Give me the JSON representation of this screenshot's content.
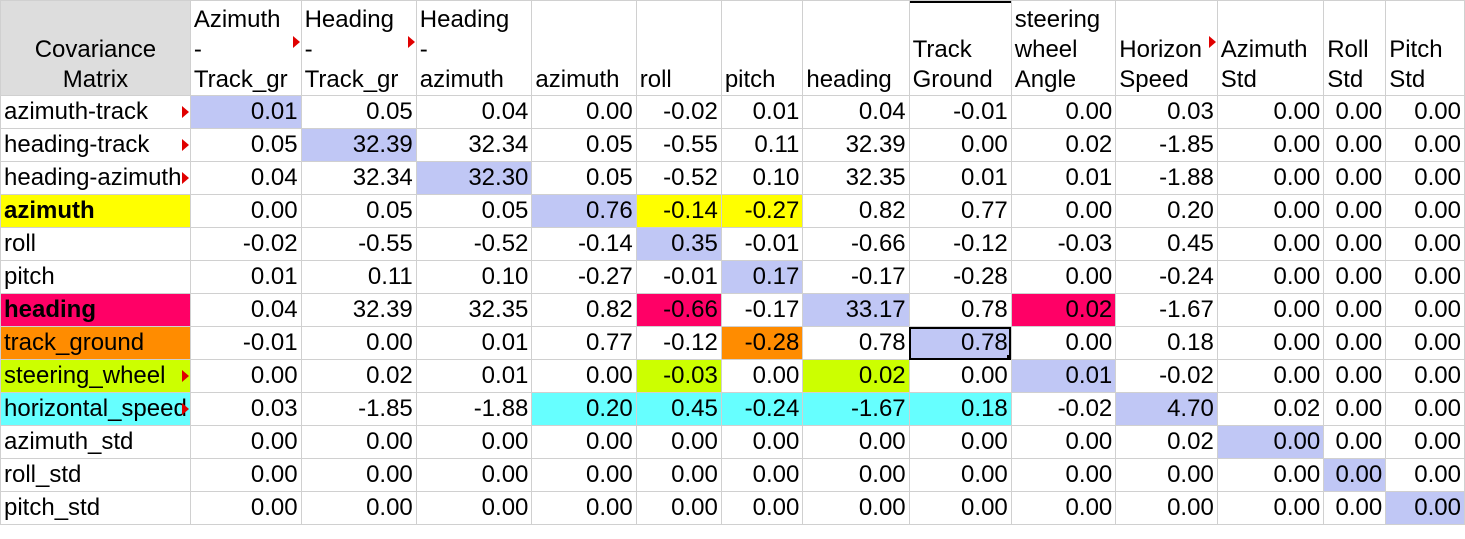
{
  "colors": {
    "diag": "#c0c7f5",
    "yellow": "#ffff00",
    "magenta": "#ff0066",
    "orange": "#ff8c00",
    "lime": "#ccff00",
    "cyan": "#66ffff",
    "corner": "#dddddd",
    "note-triangle": "#e00000"
  },
  "sheet": {
    "corner_label": "Covariance\nMatrix",
    "headers": [
      "Azimuth\n-\nTrack_gr",
      "Heading\n-\nTrack_gr",
      "Heading\n-\nazimuth",
      "azimuth",
      "roll",
      "pitch",
      "heading",
      "Track\nGround",
      "steering\nwheel\nAngle",
      "Horizon\nSpeed",
      "Azimuth\nStd",
      "Roll\nStd",
      "Pitch\nStd"
    ],
    "rows": [
      {
        "label": "azimuth-track",
        "values": [
          "0.01",
          "0.05",
          "0.04",
          "0.00",
          "-0.02",
          "0.01",
          "0.04",
          "-0.01",
          "0.00",
          "0.03",
          "0.00",
          "0.00",
          "0.00"
        ]
      },
      {
        "label": "heading-track",
        "values": [
          "0.05",
          "32.39",
          "32.34",
          "0.05",
          "-0.55",
          "0.11",
          "32.39",
          "0.00",
          "0.02",
          "-1.85",
          "0.00",
          "0.00",
          "0.00"
        ]
      },
      {
        "label": "heading-azimuth",
        "values": [
          "0.04",
          "32.34",
          "32.30",
          "0.05",
          "-0.52",
          "0.10",
          "32.35",
          "0.01",
          "0.01",
          "-1.88",
          "0.00",
          "0.00",
          "0.00"
        ]
      },
      {
        "label": "azimuth",
        "values": [
          "0.00",
          "0.05",
          "0.05",
          "0.76",
          "-0.14",
          "-0.27",
          "0.82",
          "0.77",
          "0.00",
          "0.20",
          "0.00",
          "0.00",
          "0.00"
        ]
      },
      {
        "label": "roll",
        "values": [
          "-0.02",
          "-0.55",
          "-0.52",
          "-0.14",
          "0.35",
          "-0.01",
          "-0.66",
          "-0.12",
          "-0.03",
          "0.45",
          "0.00",
          "0.00",
          "0.00"
        ]
      },
      {
        "label": "pitch",
        "values": [
          "0.01",
          "0.11",
          "0.10",
          "-0.27",
          "-0.01",
          "0.17",
          "-0.17",
          "-0.28",
          "0.00",
          "-0.24",
          "0.00",
          "0.00",
          "0.00"
        ]
      },
      {
        "label": "heading",
        "values": [
          "0.04",
          "32.39",
          "32.35",
          "0.82",
          "-0.66",
          "-0.17",
          "33.17",
          "0.78",
          "0.02",
          "-1.67",
          "0.00",
          "0.00",
          "0.00"
        ]
      },
      {
        "label": "track_ground",
        "values": [
          "-0.01",
          "0.00",
          "0.01",
          "0.77",
          "-0.12",
          "-0.28",
          "0.78",
          "0.78",
          "0.00",
          "0.18",
          "0.00",
          "0.00",
          "0.00"
        ]
      },
      {
        "label": "steering_wheel",
        "values": [
          "0.00",
          "0.02",
          "0.01",
          "0.00",
          "-0.03",
          "0.00",
          "0.02",
          "0.00",
          "0.01",
          "-0.02",
          "0.00",
          "0.00",
          "0.00"
        ]
      },
      {
        "label": "horizontal_speed",
        "values": [
          "0.03",
          "-1.85",
          "-1.88",
          "0.20",
          "0.45",
          "-0.24",
          "-1.67",
          "0.18",
          "-0.02",
          "4.70",
          "0.02",
          "0.00",
          "0.00"
        ]
      },
      {
        "label": "azimuth_std",
        "values": [
          "0.00",
          "0.00",
          "0.00",
          "0.00",
          "0.00",
          "0.00",
          "0.00",
          "0.00",
          "0.00",
          "0.02",
          "0.00",
          "0.00",
          "0.00"
        ]
      },
      {
        "label": "roll_std",
        "values": [
          "0.00",
          "0.00",
          "0.00",
          "0.00",
          "0.00",
          "0.00",
          "0.00",
          "0.00",
          "0.00",
          "0.00",
          "0.00",
          "0.00",
          "0.00"
        ]
      },
      {
        "label": "pitch_std",
        "values": [
          "0.00",
          "0.00",
          "0.00",
          "0.00",
          "0.00",
          "0.00",
          "0.00",
          "0.00",
          "0.00",
          "0.00",
          "0.00",
          "0.00",
          "0.00"
        ]
      }
    ]
  }
}
